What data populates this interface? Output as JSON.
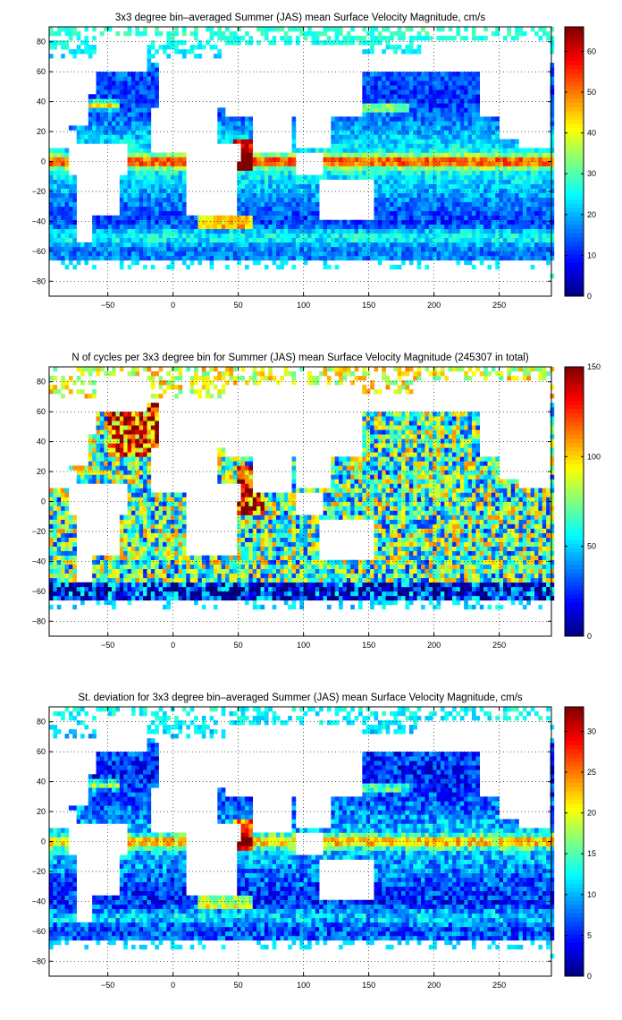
{
  "chart_data": [
    {
      "type": "heatmap",
      "title": "3x3 degree bin–averaged Summer (JAS) mean Surface Velocity Magnitude, cm/s",
      "xlim": [
        -95,
        290
      ],
      "ylim": [
        -90,
        90
      ],
      "xticks": [
        -50,
        0,
        50,
        100,
        150,
        200,
        250
      ],
      "yticks": [
        -80,
        -60,
        -40,
        -20,
        0,
        20,
        40,
        60,
        80
      ],
      "colorbar": {
        "ticks": [
          0,
          10,
          20,
          30,
          40,
          50,
          60
        ],
        "max": 66
      },
      "grid": true,
      "field": "velocity",
      "colormap": "jet"
    },
    {
      "type": "heatmap",
      "title": "N of cycles per 3x3 degree bin for Summer (JAS) mean Surface Velocity Magnitude (245307 in total)",
      "xlim": [
        -95,
        290
      ],
      "ylim": [
        -90,
        90
      ],
      "xticks": [
        -50,
        0,
        50,
        100,
        150,
        200,
        250
      ],
      "yticks": [
        -80,
        -60,
        -40,
        -20,
        0,
        20,
        40,
        60,
        80
      ],
      "colorbar": {
        "ticks": [
          0,
          50,
          100,
          150
        ],
        "max": 150
      },
      "grid": true,
      "field": "count",
      "colormap": "jet"
    },
    {
      "type": "heatmap",
      "title": "St. deviation for 3x3 degree bin–averaged Summer (JAS) mean Surface Velocity Magnitude, cm/s",
      "xlim": [
        -95,
        290
      ],
      "ylim": [
        -90,
        90
      ],
      "xticks": [
        -50,
        0,
        50,
        100,
        150,
        200,
        250
      ],
      "yticks": [
        -80,
        -60,
        -40,
        -20,
        0,
        20,
        40,
        60,
        80
      ],
      "colorbar": {
        "ticks": [
          0,
          5,
          10,
          15,
          20,
          25,
          30
        ],
        "max": 33
      },
      "grid": true,
      "field": "stddev",
      "colormap": "jet"
    }
  ]
}
